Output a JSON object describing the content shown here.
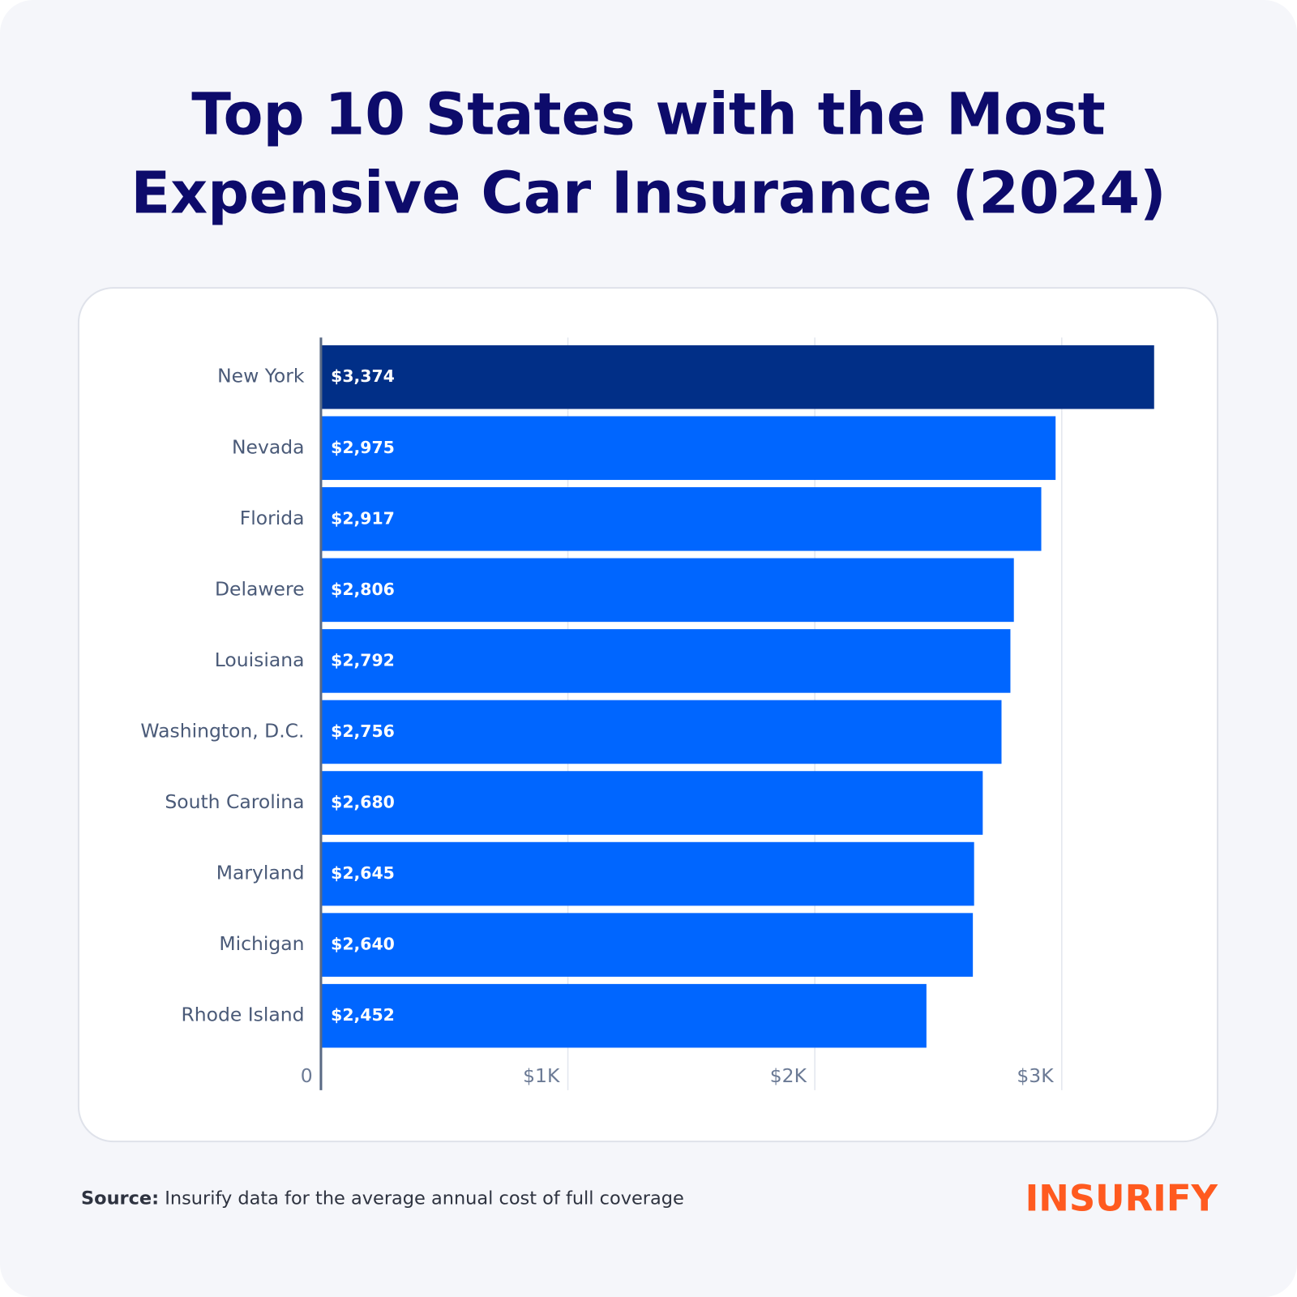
{
  "chart_data": {
    "type": "bar",
    "title": [
      "Top 10 States with the Most",
      "Expensive Car Insurance (2024)"
    ],
    "categories": [
      "New York",
      "Nevada",
      "Florida",
      "Delawere",
      "Louisiana",
      "Washington, D.C.",
      "South Carolina",
      "Maryland",
      "Michigan",
      "Rhode Island"
    ],
    "values": [
      3374,
      2975,
      2917,
      2806,
      2792,
      2756,
      2680,
      2645,
      2640,
      2452
    ],
    "value_labels": [
      "$3,374",
      "$2,975",
      "$2,917",
      "$2,806",
      "$2,792",
      "$2,756",
      "$2,680",
      "$2,645",
      "$2,640",
      "$2,452"
    ],
    "colors": [
      "#012f87",
      "#0066ff",
      "#0066ff",
      "#0066ff",
      "#0066ff",
      "#0066ff",
      "#0066ff",
      "#0066ff",
      "#0066ff",
      "#0066ff"
    ],
    "xlim": [
      0,
      3420
    ],
    "xticks": [
      0,
      {
        "value": 1000,
        "label": "$1K"
      },
      {
        "value": 2000,
        "label": "$2K"
      },
      {
        "value": 3000,
        "label": "$3K"
      }
    ],
    "grid": true,
    "source_label": "Source:",
    "source_text": "Insurify data for the average annual cost of full coverage",
    "logo": "INSURIFY"
  }
}
